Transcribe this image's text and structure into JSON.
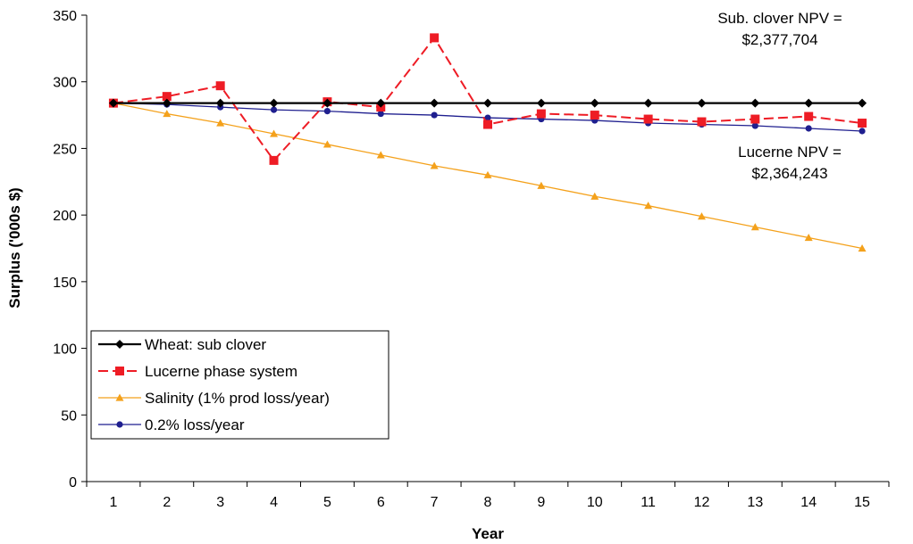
{
  "chart_data": {
    "type": "line",
    "title": "",
    "xlabel": "Year",
    "ylabel": "Surplus ('000s $)",
    "x": [
      1,
      2,
      3,
      4,
      5,
      6,
      7,
      8,
      9,
      10,
      11,
      12,
      13,
      14,
      15
    ],
    "ylim": [
      0,
      350
    ],
    "yticks": [
      0,
      50,
      100,
      150,
      200,
      250,
      300,
      350
    ],
    "grid": false,
    "legend_position": "bottom-left",
    "series": [
      {
        "name": "Wheat: sub clover",
        "color": "#000000",
        "marker": "diamond",
        "dash": "solid",
        "values": [
          284,
          284,
          284,
          284,
          284,
          284,
          284,
          284,
          284,
          284,
          284,
          284,
          284,
          284,
          284
        ]
      },
      {
        "name": "Lucerne phase system",
        "color": "#ee1c25",
        "marker": "square",
        "dash": "dashed",
        "values": [
          284,
          289,
          297,
          241,
          285,
          281,
          333,
          268,
          276,
          275,
          272,
          270,
          272,
          274,
          269
        ]
      },
      {
        "name": "Salinity (1% prod loss/year)",
        "color": "#f4a11b",
        "marker": "triangle",
        "dash": "solid",
        "values": [
          284,
          276,
          269,
          261,
          253,
          245,
          237,
          230,
          222,
          214,
          207,
          199,
          191,
          183,
          175
        ]
      },
      {
        "name": "0.2% loss/year",
        "color": "#1f1f8f",
        "marker": "circle",
        "dash": "solid",
        "values": [
          284,
          283,
          281,
          279,
          278,
          276,
          275,
          273,
          272,
          271,
          269,
          268,
          267,
          265,
          263
        ]
      }
    ],
    "annotations": [
      {
        "lines": [
          "Sub. clover NPV =",
          "$2,377,704"
        ]
      },
      {
        "lines": [
          "Lucerne NPV =",
          "$2,364,243"
        ]
      }
    ]
  }
}
